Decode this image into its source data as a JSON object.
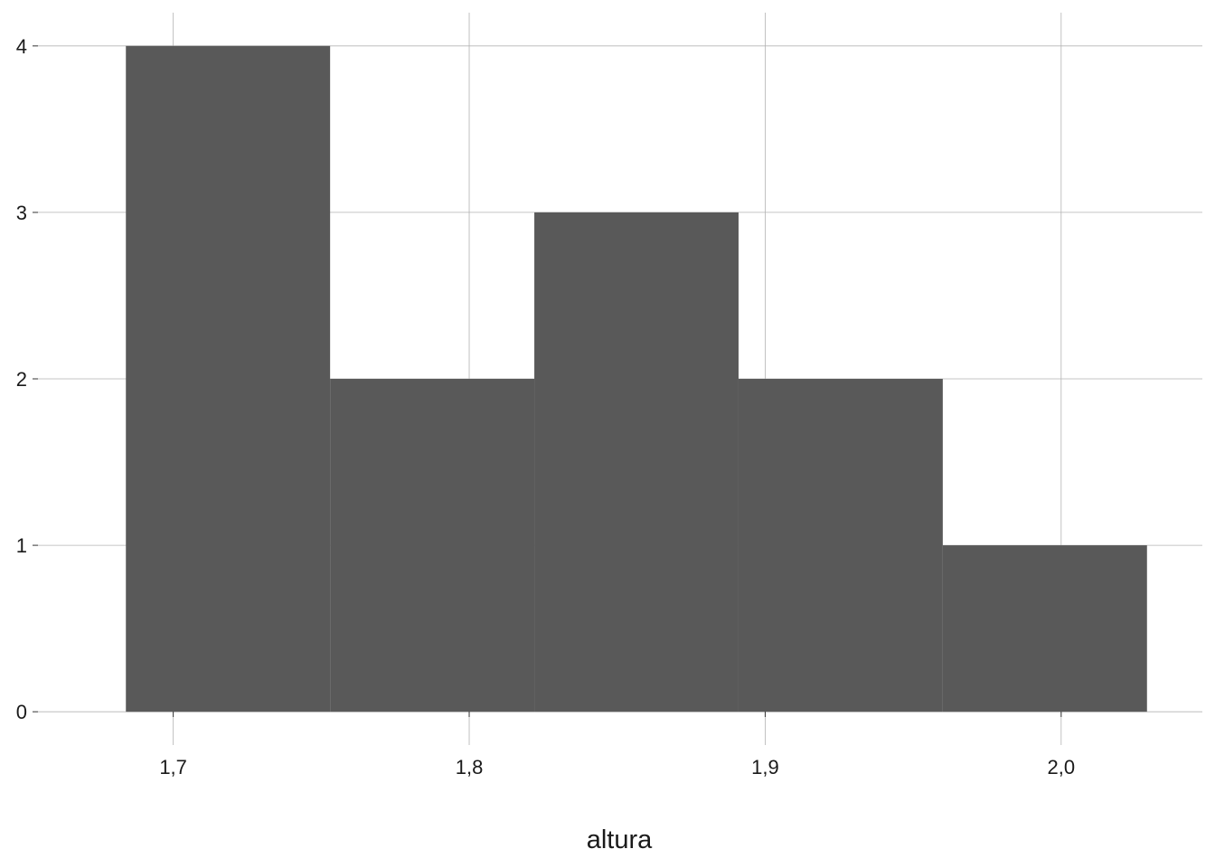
{
  "chart_data": {
    "type": "bar",
    "subtype": "histogram",
    "title": "",
    "xlabel": "altura",
    "ylabel": "",
    "bins": [
      {
        "x0": 1.684,
        "x1": 1.753,
        "count": 4
      },
      {
        "x0": 1.753,
        "x1": 1.822,
        "count": 2
      },
      {
        "x0": 1.822,
        "x1": 1.891,
        "count": 3
      },
      {
        "x0": 1.891,
        "x1": 1.96,
        "count": 2
      },
      {
        "x0": 1.96,
        "x1": 2.029,
        "count": 1
      }
    ],
    "xlim": [
      1.6543,
      2.0477
    ],
    "ylim": [
      -0.2,
      4.2
    ],
    "x_ticks": [
      {
        "value": 1.7,
        "label": "1,7"
      },
      {
        "value": 1.8,
        "label": "1,8"
      },
      {
        "value": 1.9,
        "label": "1,9"
      },
      {
        "value": 2.0,
        "label": "2,0"
      }
    ],
    "y_ticks": [
      {
        "value": 0,
        "label": "0"
      },
      {
        "value": 1,
        "label": "1"
      },
      {
        "value": 2,
        "label": "2"
      },
      {
        "value": 3,
        "label": "3"
      },
      {
        "value": 4,
        "label": "4"
      }
    ],
    "grid": true,
    "legend": "none",
    "bar_color": "#595959",
    "grid_color": "#b3b3b3"
  }
}
